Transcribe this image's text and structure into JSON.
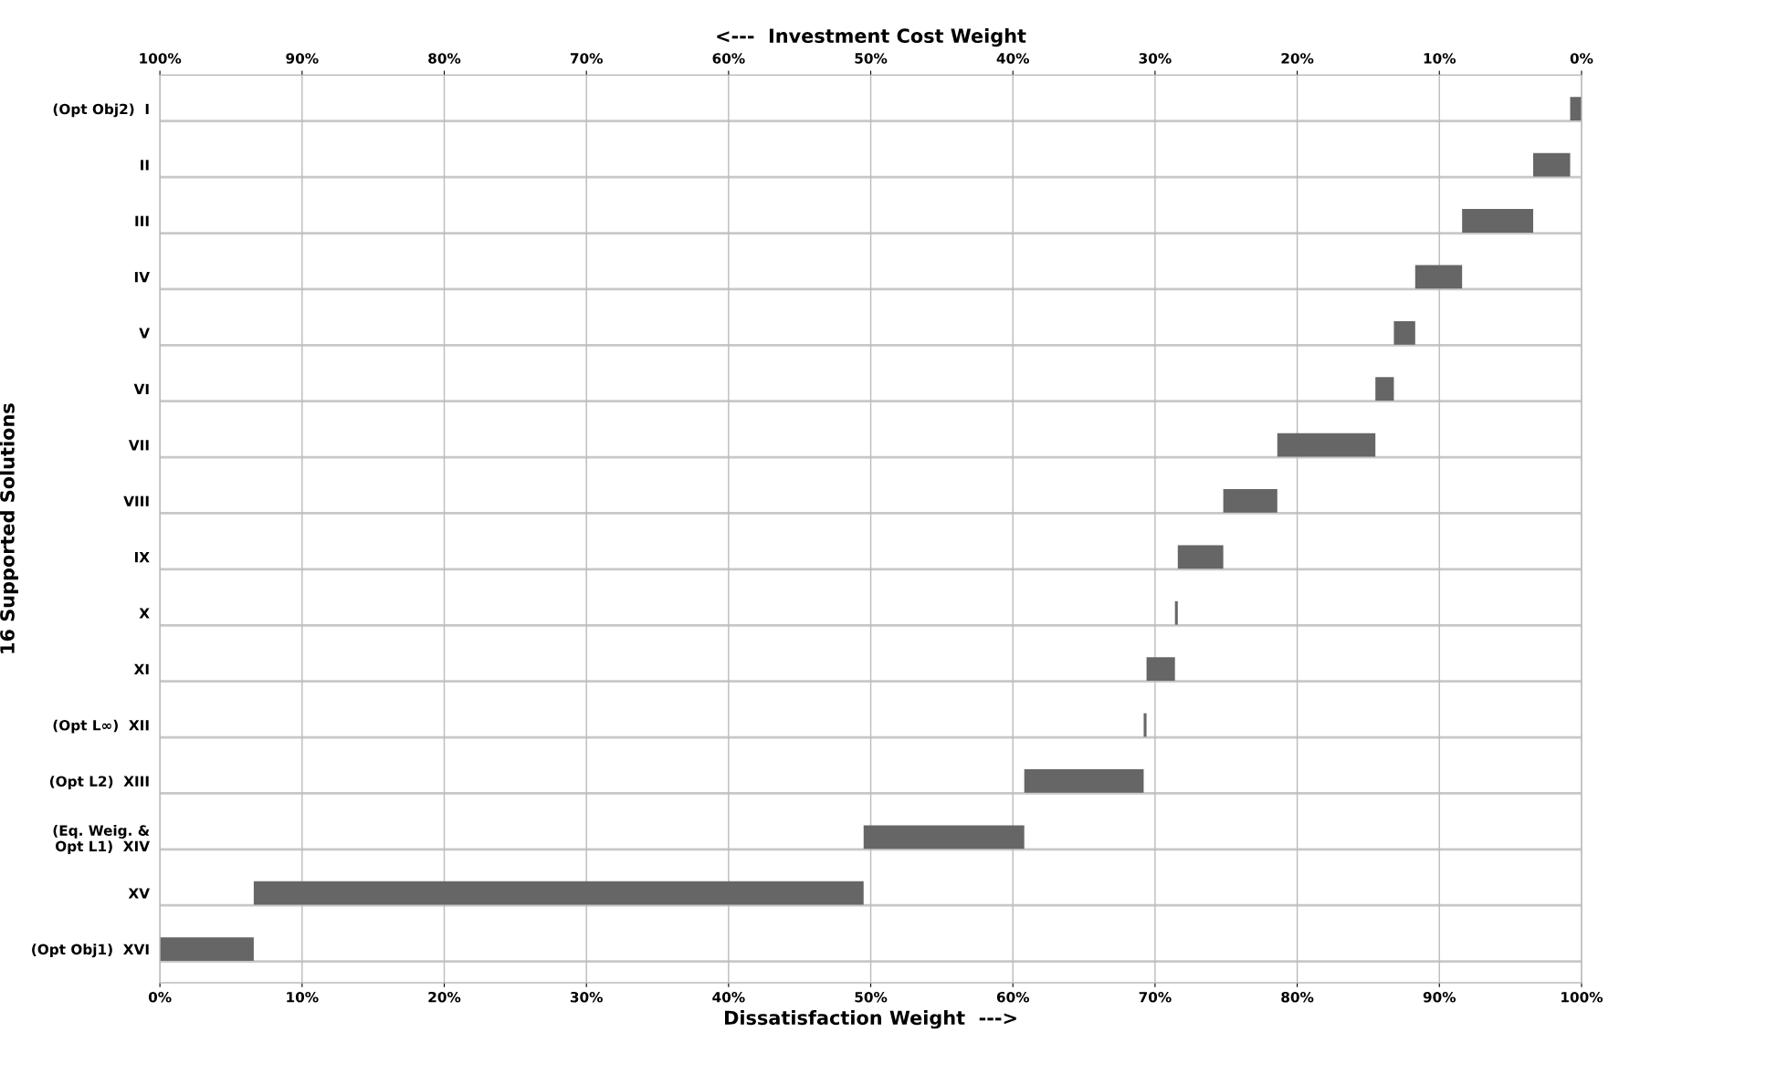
{
  "chart_data": {
    "type": "bar",
    "orientation": "horizontal",
    "xlabel": "Dissatisfaction Weight  --->",
    "x2label": "<---  Investment Cost Weight",
    "ylabel": "16 Supported Solutions",
    "categories": [
      "(Opt Obj2)  I",
      "II",
      "III",
      "IV",
      "V",
      "VI",
      "VII",
      "VIII",
      "IX",
      "X",
      "XI",
      "(Opt L∞)  XII",
      "(Opt L2)  XIII",
      "(Eq. Weig. &\nOpt L1)  XIV",
      "XV",
      "(Opt Obj1)  XVI"
    ],
    "base": [
      99.2,
      96.6,
      91.6,
      88.3,
      86.8,
      85.5,
      78.6,
      74.8,
      71.6,
      71.4,
      69.4,
      69.2,
      60.8,
      49.5,
      6.6,
      0
    ],
    "values": [
      0.8,
      2.6,
      5.0,
      3.3,
      1.5,
      1.3,
      6.9,
      3.8,
      3.2,
      0.2,
      2.0,
      0.2,
      8.4,
      11.3,
      42.9,
      6.6
    ],
    "color": "#666666",
    "xlim": [
      0,
      100
    ],
    "xticks": [
      {
        "value": 0,
        "label": "0%"
      },
      {
        "value": 10,
        "label": "10%"
      },
      {
        "value": 20,
        "label": "20%"
      },
      {
        "value": 30,
        "label": "30%"
      },
      {
        "value": 40,
        "label": "40%"
      },
      {
        "value": 50,
        "label": "50%"
      },
      {
        "value": 60,
        "label": "60%"
      },
      {
        "value": 70,
        "label": "70%"
      },
      {
        "value": 80,
        "label": "80%"
      },
      {
        "value": 90,
        "label": "90%"
      },
      {
        "value": 100,
        "label": "100%"
      }
    ],
    "x2lim": [
      100,
      0
    ],
    "x2ticks": [
      {
        "value": 100,
        "label": "100%"
      },
      {
        "value": 90,
        "label": "90%"
      },
      {
        "value": 80,
        "label": "80%"
      },
      {
        "value": 70,
        "label": "70%"
      },
      {
        "value": 60,
        "label": "60%"
      },
      {
        "value": 50,
        "label": "50%"
      },
      {
        "value": 40,
        "label": "40%"
      },
      {
        "value": 30,
        "label": "30%"
      },
      {
        "value": 20,
        "label": "20%"
      },
      {
        "value": 10,
        "label": "10%"
      },
      {
        "value": 0,
        "label": "0%"
      }
    ],
    "grid": true
  }
}
